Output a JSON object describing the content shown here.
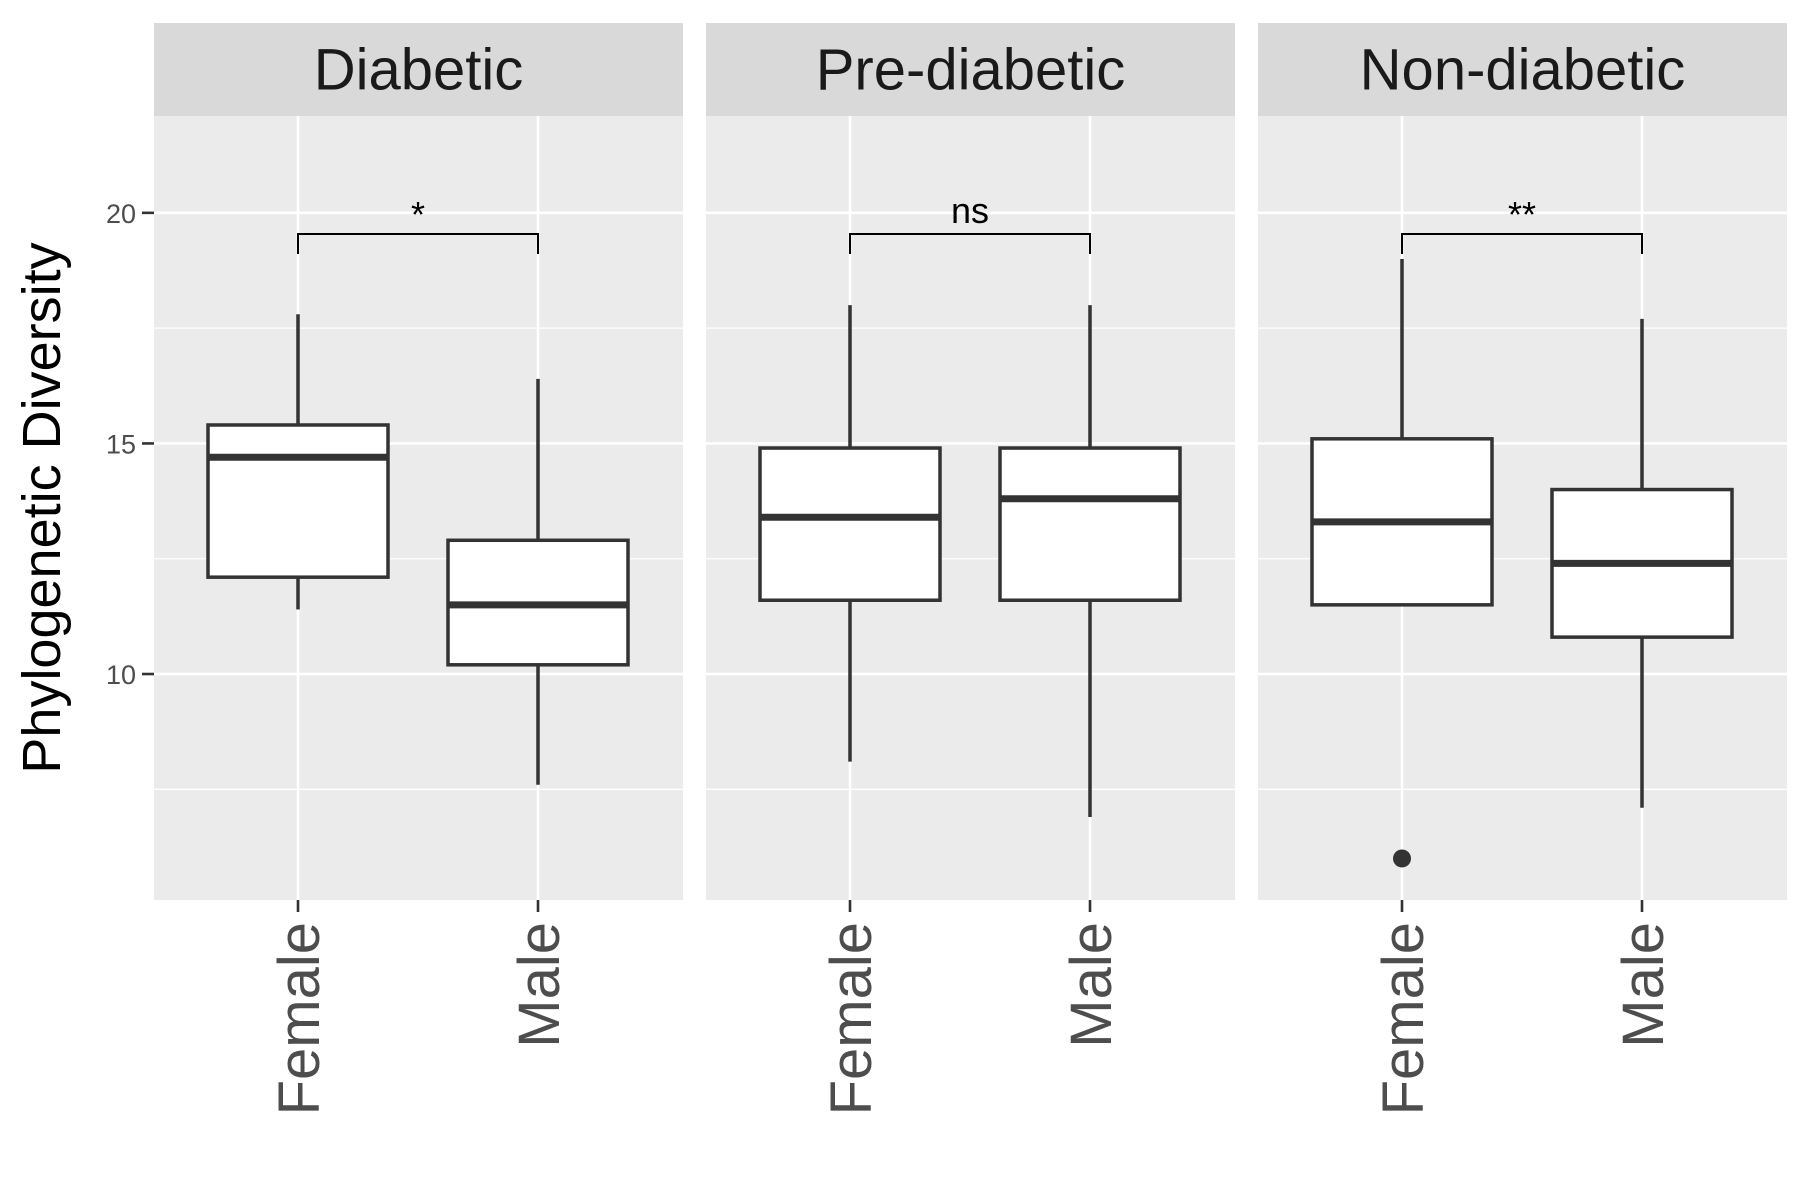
{
  "chart_data": {
    "type": "boxplot",
    "ylabel": "Phylogenetic Diversity",
    "xlabel": "",
    "ylim": [
      5.1,
      22.1
    ],
    "yticks": [
      10,
      15,
      20
    ],
    "categories": [
      "Female",
      "Male"
    ],
    "panels": [
      {
        "name": "Diabetic",
        "significance": "*",
        "boxes": [
          {
            "category": "Female",
            "whisker_low": 11.4,
            "q1": 12.1,
            "median": 14.7,
            "q3": 15.4,
            "whisker_high": 17.8,
            "outliers": []
          },
          {
            "category": "Male",
            "whisker_low": 7.6,
            "q1": 10.2,
            "median": 11.5,
            "q3": 12.9,
            "whisker_high": 16.4,
            "outliers": []
          }
        ]
      },
      {
        "name": "Pre-diabetic",
        "significance": "ns",
        "boxes": [
          {
            "category": "Female",
            "whisker_low": 8.1,
            "q1": 11.6,
            "median": 13.4,
            "q3": 14.9,
            "whisker_high": 18.0,
            "outliers": []
          },
          {
            "category": "Male",
            "whisker_low": 6.9,
            "q1": 11.6,
            "median": 13.8,
            "q3": 14.9,
            "whisker_high": 18.0,
            "outliers": []
          }
        ]
      },
      {
        "name": "Non-diabetic",
        "significance": "**",
        "boxes": [
          {
            "category": "Female",
            "whisker_low": 11.5,
            "q1": 11.5,
            "median": 13.3,
            "q3": 15.1,
            "whisker_high": 19.0,
            "outliers": [
              6.0
            ]
          },
          {
            "category": "Male",
            "whisker_low": 7.1,
            "q1": 10.8,
            "median": 12.4,
            "q3": 14.0,
            "whisker_high": 17.7,
            "outliers": []
          }
        ]
      }
    ],
    "colors": {
      "panel_bg": "#ebebeb",
      "strip_bg": "#d9d9d9",
      "grid": "#ffffff",
      "box_fill": "#ffffff",
      "box_line": "#333333"
    }
  }
}
